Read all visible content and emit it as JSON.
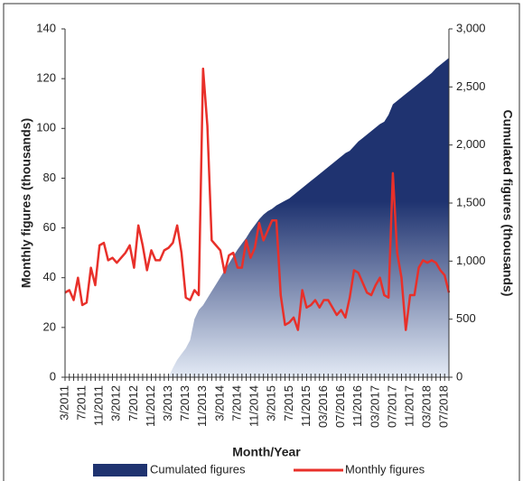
{
  "chart_data": {
    "type": "combo",
    "xlabel": "Month/Year",
    "ylabel": "Monthly figures (thousands)",
    "y2label": "Cumulated figures (thousands)",
    "categories": [
      "3/2011",
      null,
      null,
      null,
      "7/2011",
      null,
      null,
      null,
      "11/2011",
      null,
      null,
      null,
      "3/2012",
      null,
      null,
      null,
      "7/2012",
      null,
      null,
      null,
      "11/2012",
      null,
      null,
      null,
      "3/2013",
      null,
      null,
      null,
      "7/2013",
      null,
      null,
      null,
      "11/2013",
      null,
      null,
      null,
      "3/2014",
      null,
      null,
      null,
      "7/2014",
      null,
      null,
      null,
      "11/2014",
      null,
      null,
      null,
      "3/2015",
      null,
      null,
      null,
      "7/2015",
      null,
      null,
      null,
      "11/2015",
      null,
      null,
      null,
      "03/2016",
      null,
      null,
      null,
      "07/2016",
      null,
      null,
      null,
      "11/2016",
      null,
      null,
      null,
      "03/2017",
      null,
      null,
      null,
      "07/2017",
      null,
      null,
      null,
      "11/2017",
      null,
      null,
      null,
      "03/2018",
      null,
      null,
      null,
      "07/2018",
      null
    ],
    "series": [
      {
        "name": "Cumulated figures",
        "type": "area",
        "axis": "y2",
        "color": "#1f3370",
        "color_light": "#e3eaf5",
        "values": [
          null,
          null,
          null,
          null,
          null,
          null,
          null,
          null,
          null,
          null,
          null,
          null,
          null,
          null,
          null,
          null,
          null,
          null,
          null,
          null,
          null,
          null,
          null,
          null,
          0,
          80,
          150,
          200,
          250,
          320,
          500,
          580,
          620,
          680,
          740,
          800,
          860,
          920,
          980,
          1040,
          1100,
          1150,
          1200,
          1260,
          1310,
          1360,
          1400,
          1430,
          1450,
          1480,
          1500,
          1520,
          1540,
          1570,
          1600,
          1630,
          1660,
          1690,
          1720,
          1750,
          1780,
          1810,
          1840,
          1870,
          1900,
          1930,
          1950,
          1990,
          2030,
          2060,
          2090,
          2120,
          2150,
          2180,
          2200,
          2260,
          2350,
          2380,
          2410,
          2440,
          2470,
          2500,
          2530,
          2560,
          2590,
          2620,
          2660,
          2690,
          2720,
          2750
        ]
      },
      {
        "name": "Monthly figures",
        "type": "line",
        "color": "#e8302a",
        "values": [
          34,
          35,
          31,
          40,
          29,
          30,
          44,
          37,
          53,
          54,
          47,
          48,
          46,
          48,
          50,
          53,
          44,
          61,
          53,
          43,
          51,
          47,
          47,
          51,
          52,
          54,
          61,
          50,
          32,
          31,
          35,
          33,
          124,
          101,
          55,
          53,
          51,
          42,
          49,
          50,
          44,
          44,
          55,
          48,
          52,
          62,
          55,
          59,
          63,
          63,
          33,
          21,
          22,
          24,
          19,
          35,
          28,
          29,
          31,
          28,
          31,
          31,
          28,
          25,
          27,
          24,
          32,
          43,
          42,
          38,
          34,
          33,
          37,
          40,
          33,
          32,
          82,
          50,
          40,
          19,
          33,
          33,
          44,
          47,
          46,
          47,
          46,
          43,
          41,
          34
        ]
      }
    ],
    "ylim": [
      0,
      140
    ],
    "yticks": [
      0,
      20,
      40,
      60,
      80,
      100,
      120,
      140
    ],
    "y2lim": [
      0,
      3000
    ],
    "y2ticks": [
      0,
      500,
      {
        "value": 1000,
        "label": "1,000"
      },
      {
        "value": 1500,
        "label": "1,500"
      },
      {
        "value": 2000,
        "label": "2,000"
      },
      {
        "value": 2500,
        "label": "2,500"
      },
      {
        "value": 3000,
        "label": "3,000"
      }
    ]
  }
}
